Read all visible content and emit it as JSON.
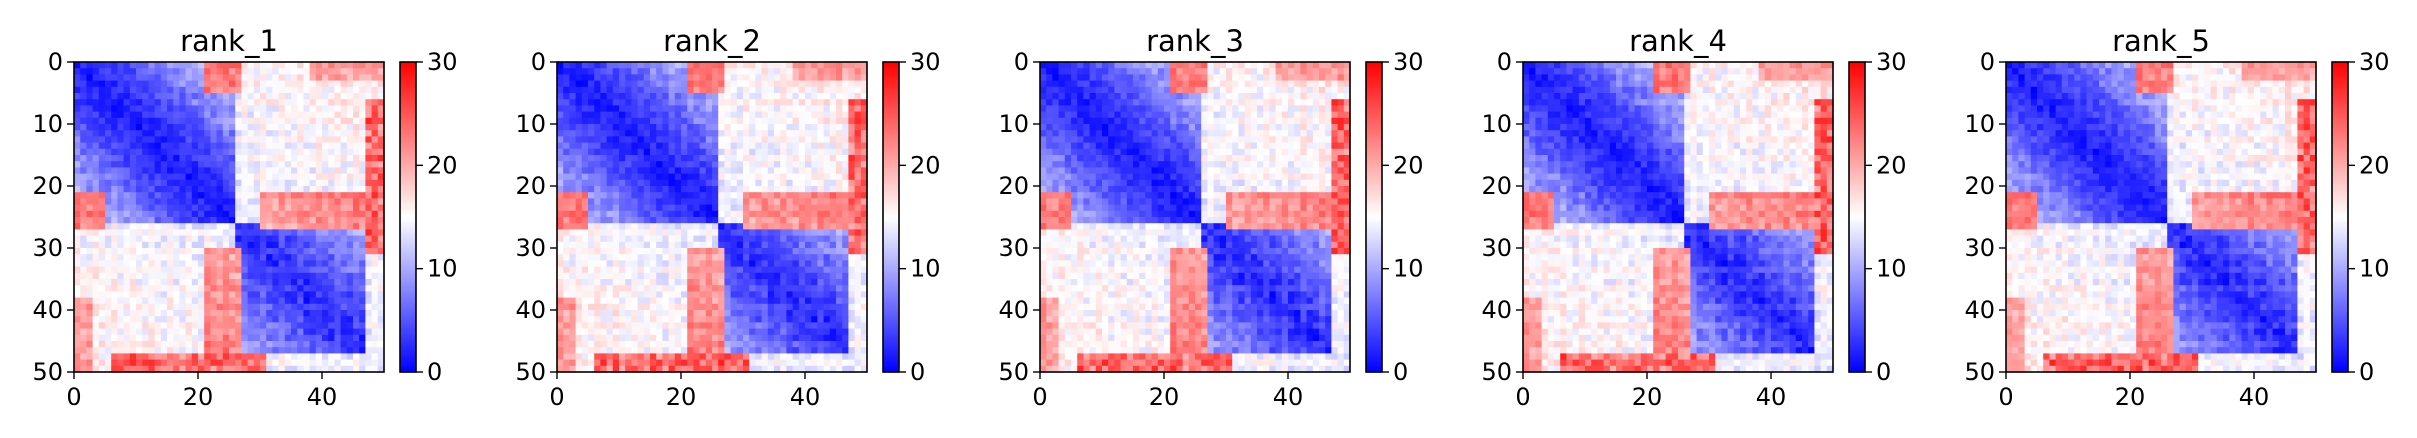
{
  "colors": {
    "low": "#0000ff",
    "mid": "#ffffff",
    "high": "#ff0000"
  },
  "chart_data": [
    {
      "type": "heatmap",
      "title": "rank_1",
      "xlim": [
        0,
        50
      ],
      "ylim": [
        50,
        0
      ],
      "xticks": [
        "0",
        "20",
        "40"
      ],
      "yticks": [
        "0",
        "10",
        "20",
        "30",
        "40",
        "50"
      ],
      "colorbar": {
        "range": [
          0,
          30
        ],
        "ticks": [
          "0",
          "10",
          "20",
          "30"
        ],
        "colormap": "bwr"
      },
      "grid": false,
      "legend": "none"
    },
    {
      "type": "heatmap",
      "title": "rank_2",
      "xlim": [
        0,
        50
      ],
      "ylim": [
        50,
        0
      ],
      "xticks": [
        "0",
        "20",
        "40"
      ],
      "yticks": [
        "0",
        "10",
        "20",
        "30",
        "40",
        "50"
      ],
      "colorbar": {
        "range": [
          0,
          30
        ],
        "ticks": [
          "0",
          "10",
          "20",
          "30"
        ],
        "colormap": "bwr"
      },
      "grid": false,
      "legend": "none"
    },
    {
      "type": "heatmap",
      "title": "rank_3",
      "xlim": [
        0,
        50
      ],
      "ylim": [
        50,
        0
      ],
      "xticks": [
        "0",
        "20",
        "40"
      ],
      "yticks": [
        "0",
        "10",
        "20",
        "30",
        "40",
        "50"
      ],
      "colorbar": {
        "range": [
          0,
          30
        ],
        "ticks": [
          "0",
          "10",
          "20",
          "30"
        ],
        "colormap": "bwr"
      },
      "grid": false,
      "legend": "none"
    },
    {
      "type": "heatmap",
      "title": "rank_4",
      "xlim": [
        0,
        50
      ],
      "ylim": [
        50,
        0
      ],
      "xticks": [
        "0",
        "20",
        "40"
      ],
      "yticks": [
        "0",
        "10",
        "20",
        "30",
        "40",
        "50"
      ],
      "colorbar": {
        "range": [
          0,
          30
        ],
        "ticks": [
          "0",
          "10",
          "20",
          "30"
        ],
        "colormap": "bwr"
      },
      "grid": false,
      "legend": "none"
    },
    {
      "type": "heatmap",
      "title": "rank_5",
      "xlim": [
        0,
        50
      ],
      "ylim": [
        50,
        0
      ],
      "xticks": [
        "0",
        "20",
        "40"
      ],
      "yticks": [
        "0",
        "10",
        "20",
        "30",
        "40",
        "50"
      ],
      "colorbar": {
        "range": [
          0,
          30
        ],
        "ticks": [
          "0",
          "10",
          "20",
          "30"
        ],
        "colormap": "bwr"
      },
      "grid": false,
      "legend": "none"
    }
  ]
}
